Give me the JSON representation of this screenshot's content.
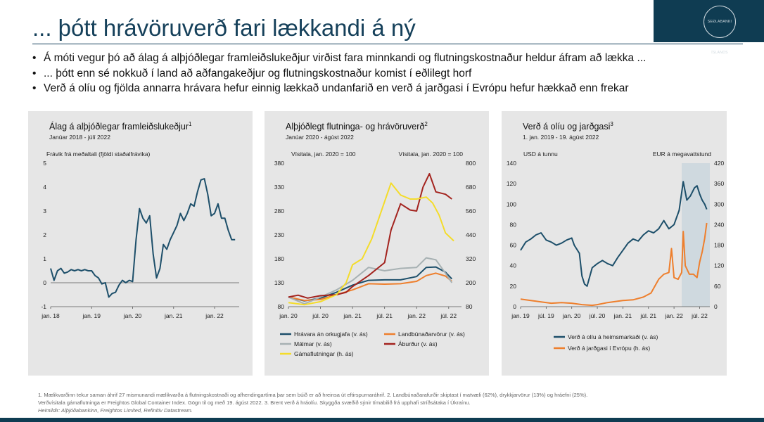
{
  "slide": {
    "title": "... þótt hrávöruverð fari lækkandi á ný",
    "bullets": [
      "Á móti vegur þó að álag á alþjóðlegar framleiðslukeðjur virðist fara minnkandi og flutningskostnaður heldur áfram að lækka ...",
      "... þótt enn sé nokkuð í land að aðfangakeðjur og flutningskostnaður komist í eðlilegt horf",
      "Verð á olíu og fjölda annarra hrávara hefur einnig lækkað undanfarið en verð á jarðgasi í Evrópu hefur hækkað enn frekar"
    ],
    "logo_text": "SEÐLABANKI ÍSLANDS",
    "footer_line1": "1. Mælikvarðinn tekur saman áhrif 27 mismunandi mælikvarða á flutningskostnaði og afhendingartíma þar sem búið er að hreinsa út eftirspurnaráhrif. 2. Landbúnaðarafurðir skiptast í matvæli (62%), drykkjarvörur (13%) og hráefni (25%).",
    "footer_line2": "Verðvísitala gámaflutninga er Freightos Global Container Index. Gögn til og með 19. ágúst 2022. 3. Brent verð á hráolíu. Skyggða svæðið sýnir tímabilið frá upphafi stríðsátaka í Úkraínu.",
    "footer_source": "Heimildir: Alþjóðabankinn, Freightos Limited, Refinitiv Datastream.",
    "colors": {
      "navy": "#15405a",
      "teal": "#1d4f6a",
      "orange": "#ee7f2d",
      "gray": "#a7b1b3",
      "darkred": "#a3231e",
      "yellow": "#f4dc2a",
      "panel": "#e6e6e6",
      "shade": "#cfd9df"
    }
  },
  "chart_data": [
    {
      "type": "line",
      "title": "Álag á alþjóðlegar framleiðslukeðjur",
      "title_sup": "1",
      "subtitle": "Janúar 2018 - júlí 2022",
      "ylabel": "Frávik frá meðaltali (fjöldi staðalfrávika)",
      "ylim": [
        -1,
        5
      ],
      "yticks": [
        "5",
        "4",
        "3",
        "2",
        "1",
        "0",
        "-1"
      ],
      "xlim": [
        2018.0,
        2022.6
      ],
      "xticks": [
        {
          "x": 2018.0,
          "label": "jan. 18"
        },
        {
          "x": 2019.0,
          "label": "jan. 19"
        },
        {
          "x": 2020.0,
          "label": "jan. 20"
        },
        {
          "x": 2021.0,
          "label": "jan. 21"
        },
        {
          "x": 2022.0,
          "label": "jan. 22"
        }
      ],
      "series": [
        {
          "color": "#1d4f6a",
          "x": [
            2018.0,
            2018.083,
            2018.167,
            2018.25,
            2018.333,
            2018.417,
            2018.5,
            2018.583,
            2018.667,
            2018.75,
            2018.833,
            2018.917,
            2019.0,
            2019.083,
            2019.167,
            2019.25,
            2019.333,
            2019.417,
            2019.5,
            2019.583,
            2019.667,
            2019.75,
            2019.833,
            2019.917,
            2020.0,
            2020.083,
            2020.167,
            2020.25,
            2020.333,
            2020.417,
            2020.5,
            2020.583,
            2020.667,
            2020.75,
            2020.833,
            2020.917,
            2021.0,
            2021.083,
            2021.167,
            2021.25,
            2021.333,
            2021.417,
            2021.5,
            2021.583,
            2021.667,
            2021.75,
            2021.833,
            2021.917,
            2022.0,
            2022.083,
            2022.167,
            2022.25,
            2022.333,
            2022.417,
            2022.5
          ],
          "y": [
            0.6,
            0.1,
            0.5,
            0.6,
            0.4,
            0.45,
            0.55,
            0.5,
            0.55,
            0.5,
            0.55,
            0.5,
            0.5,
            0.3,
            0.2,
            -0.05,
            0.0,
            -0.6,
            -0.45,
            -0.4,
            -0.1,
            0.1,
            0.0,
            0.1,
            0.05,
            1.8,
            3.1,
            2.7,
            2.5,
            2.8,
            1.2,
            0.2,
            0.6,
            1.6,
            1.4,
            1.8,
            2.1,
            2.4,
            2.9,
            2.6,
            2.9,
            3.3,
            3.2,
            3.8,
            4.3,
            4.35,
            3.7,
            2.8,
            2.9,
            3.3,
            2.7,
            2.7,
            2.2,
            1.8,
            1.8
          ]
        }
      ]
    },
    {
      "type": "line",
      "title": "Alþjóðlegt flutninga- og hrávöruverð",
      "title_sup": "2",
      "subtitle": "Janúar 2020 - ágúst 2022",
      "ylabel_left": "Vísitala, jan. 2020 = 100",
      "ylabel_right": "Vísitala, jan. 2020 = 100",
      "ylim_left": [
        80,
        380
      ],
      "ylim_right": [
        80,
        800
      ],
      "yticks_left": [
        "380",
        "330",
        "280",
        "230",
        "180",
        "130",
        "80"
      ],
      "yticks_right": [
        "800",
        "680",
        "560",
        "440",
        "320",
        "200",
        "80"
      ],
      "xlim": [
        2020.0,
        2022.7
      ],
      "xticks": [
        {
          "x": 2020.0,
          "label": "jan. 20"
        },
        {
          "x": 2020.5,
          "label": "júl. 20"
        },
        {
          "x": 2021.0,
          "label": "jan. 21"
        },
        {
          "x": 2021.5,
          "label": "júl. 21"
        },
        {
          "x": 2022.0,
          "label": "jan. 22"
        },
        {
          "x": 2022.5,
          "label": "júl. 22"
        }
      ],
      "series": [
        {
          "name": "Hrávara án orkugjafa (v. ás)",
          "axis": "left",
          "color": "#1d4f6a",
          "x": [
            2020.0,
            2020.25,
            2020.5,
            2020.75,
            2021.0,
            2021.25,
            2021.5,
            2021.75,
            2022.0,
            2022.15,
            2022.3,
            2022.45,
            2022.55
          ],
          "y": [
            100,
            92,
            98,
            110,
            125,
            135,
            136,
            136,
            143,
            162,
            163,
            152,
            138
          ]
        },
        {
          "name": "Landbúnaðarvörur (v. ás)",
          "axis": "left",
          "color": "#ee7f2d",
          "x": [
            2020.0,
            2020.25,
            2020.5,
            2020.75,
            2021.0,
            2021.25,
            2021.5,
            2021.75,
            2022.0,
            2022.15,
            2022.3,
            2022.45,
            2022.55
          ],
          "y": [
            100,
            93,
            95,
            105,
            115,
            128,
            127,
            128,
            133,
            145,
            150,
            144,
            133
          ]
        },
        {
          "name": "Málmar (v. ás)",
          "axis": "left",
          "color": "#a7b1b3",
          "x": [
            2020.0,
            2020.25,
            2020.5,
            2020.75,
            2021.0,
            2021.25,
            2021.5,
            2021.75,
            2022.0,
            2022.15,
            2022.3,
            2022.45,
            2022.55
          ],
          "y": [
            100,
            86,
            100,
            115,
            135,
            162,
            155,
            160,
            162,
            182,
            178,
            150,
            130
          ]
        },
        {
          "name": "Áburður (v. ás)",
          "axis": "left",
          "color": "#a3231e",
          "x": [
            2020.0,
            2020.15,
            2020.3,
            2020.5,
            2020.75,
            2020.9,
            2021.0,
            2021.25,
            2021.5,
            2021.6,
            2021.75,
            2021.9,
            2022.0,
            2022.1,
            2022.2,
            2022.3,
            2022.45,
            2022.55
          ],
          "y": [
            100,
            104,
            98,
            103,
            105,
            110,
            122,
            145,
            172,
            240,
            295,
            282,
            280,
            330,
            358,
            320,
            315,
            305
          ]
        },
        {
          "name": "Gámaflutningar (h. ás)",
          "axis": "right",
          "color": "#f4dc2a",
          "x": [
            2020.0,
            2020.25,
            2020.5,
            2020.75,
            2020.9,
            2021.0,
            2021.15,
            2021.3,
            2021.45,
            2021.6,
            2021.75,
            2021.9,
            2022.0,
            2022.15,
            2022.25,
            2022.35,
            2022.45,
            2022.58
          ],
          "y": [
            100,
            90,
            105,
            140,
            200,
            290,
            320,
            420,
            560,
            700,
            640,
            620,
            620,
            630,
            600,
            540,
            450,
            410
          ]
        }
      ],
      "legend": [
        "Hrávara án orkugjafa (v. ás)",
        "Landbúnaðarvörur (v. ás)",
        "Málmar (v. ás)",
        "Áburður (v. ás)",
        "Gámaflutningar (h. ás)"
      ]
    },
    {
      "type": "line",
      "title": "Verð á olíu og jarðgasi",
      "title_sup": "3",
      "subtitle": "1. jan. 2019 - 19. ágúst 2022",
      "ylabel_left": "USD á tunnu",
      "ylabel_right": "EUR á megavattstund",
      "ylim_left": [
        0,
        140
      ],
      "ylim_right": [
        0,
        420
      ],
      "yticks_left": [
        "140",
        "120",
        "100",
        "80",
        "60",
        "40",
        "20",
        "0"
      ],
      "yticks_right": [
        "420",
        "360",
        "300",
        "240",
        "180",
        "120",
        "60",
        "0"
      ],
      "xlim": [
        2019.0,
        2022.7
      ],
      "shade": [
        2022.15,
        2022.7
      ],
      "xticks": [
        {
          "x": 2019.0,
          "label": "jan. 19"
        },
        {
          "x": 2019.5,
          "label": "júl. 19"
        },
        {
          "x": 2020.0,
          "label": "jan. 20"
        },
        {
          "x": 2020.5,
          "label": "júl. 20"
        },
        {
          "x": 2021.0,
          "label": "jan. 21"
        },
        {
          "x": 2021.5,
          "label": "júl. 21"
        },
        {
          "x": 2022.0,
          "label": "jan. 22"
        },
        {
          "x": 2022.5,
          "label": "júl. 22"
        }
      ],
      "series": [
        {
          "name": "Verð á olíu á heimsmarkaði (v. ás)",
          "axis": "left",
          "color": "#1d4f6a",
          "x": [
            2019.0,
            2019.1,
            2019.2,
            2019.3,
            2019.4,
            2019.5,
            2019.6,
            2019.7,
            2019.8,
            2019.9,
            2020.0,
            2020.05,
            2020.15,
            2020.2,
            2020.25,
            2020.3,
            2020.4,
            2020.5,
            2020.6,
            2020.7,
            2020.8,
            2020.9,
            2021.0,
            2021.1,
            2021.2,
            2021.3,
            2021.4,
            2021.5,
            2021.6,
            2021.7,
            2021.8,
            2021.9,
            2022.0,
            2022.1,
            2022.18,
            2022.25,
            2022.32,
            2022.4,
            2022.45,
            2022.5,
            2022.55,
            2022.6,
            2022.64
          ],
          "y": [
            55,
            63,
            66,
            70,
            72,
            65,
            63,
            60,
            62,
            65,
            67,
            60,
            52,
            30,
            22,
            20,
            38,
            42,
            45,
            42,
            40,
            48,
            55,
            62,
            66,
            64,
            70,
            74,
            72,
            76,
            84,
            76,
            80,
            94,
            122,
            104,
            108,
            116,
            118,
            110,
            104,
            100,
            95
          ]
        },
        {
          "name": "Verð á jarðgasi í Evrópu (h. ás)",
          "axis": "right",
          "color": "#ee7f2d",
          "x": [
            2019.0,
            2019.2,
            2019.4,
            2019.6,
            2019.8,
            2020.0,
            2020.2,
            2020.4,
            2020.5,
            2020.7,
            2020.9,
            2021.0,
            2021.2,
            2021.4,
            2021.55,
            2021.7,
            2021.8,
            2021.9,
            2021.95,
            2022.0,
            2022.08,
            2022.15,
            2022.18,
            2022.22,
            2022.3,
            2022.38,
            2022.45,
            2022.5,
            2022.55,
            2022.6,
            2022.64
          ],
          "y": [
            22,
            18,
            14,
            10,
            12,
            10,
            6,
            4,
            6,
            12,
            16,
            18,
            20,
            28,
            40,
            80,
            95,
            100,
            170,
            85,
            80,
            100,
            220,
            120,
            95,
            95,
            85,
            130,
            160,
            200,
            245
          ]
        }
      ],
      "legend": [
        "Verð á olíu á heimsmarkaði (v. ás)",
        "Verð á jarðgasi í Evrópu (h. ás)"
      ]
    }
  ]
}
